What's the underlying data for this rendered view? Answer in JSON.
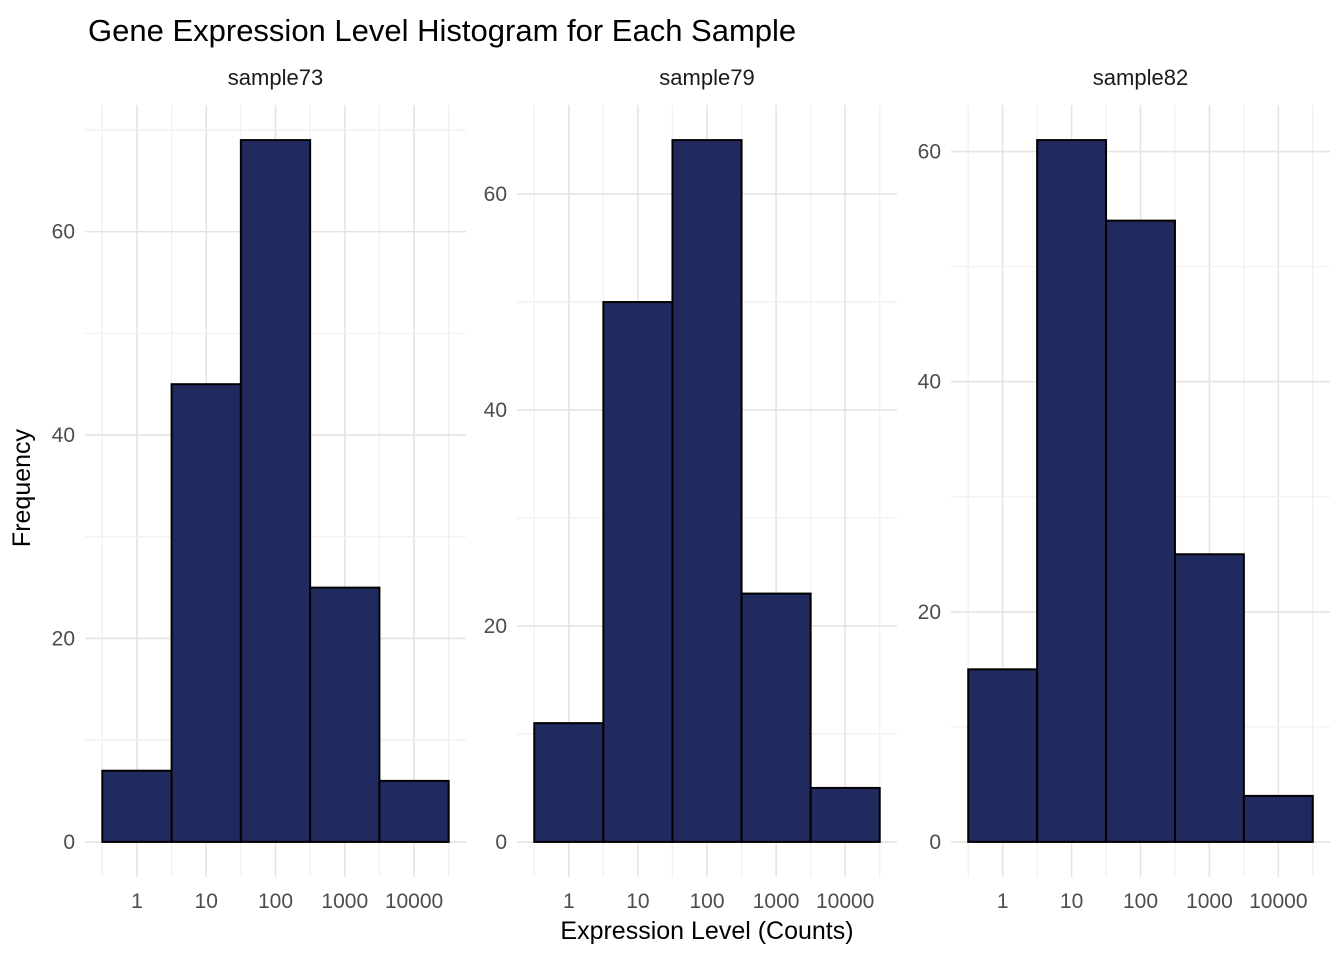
{
  "chart": {
    "title": "Gene Expression Level Histogram for Each Sample",
    "xlabel": "Expression Level (Counts)",
    "ylabel": "Frequency"
  },
  "chart_data": {
    "type": "bar",
    "subtype": "histogram_small_multiples",
    "title": "Gene Expression Level Histogram for Each Sample",
    "xlabel": "Expression Level (Counts)",
    "ylabel": "Frequency",
    "x_scale": "log10",
    "grid": "on",
    "legend": "none",
    "bin_centers": [
      1,
      10,
      100,
      1000,
      10000
    ],
    "x_tick_labels": [
      "1",
      "10",
      "100",
      "1000",
      "10000"
    ],
    "y_major_ticks": [
      0,
      20,
      40,
      60
    ],
    "y_minor_ticks": [
      10,
      30,
      50,
      70
    ],
    "y_expand_mult": 0.05,
    "panels": [
      {
        "title": "sample73",
        "values": [
          7,
          45,
          69,
          25,
          6
        ],
        "ylim": [
          0,
          72.45
        ]
      },
      {
        "title": "sample79",
        "values": [
          11,
          50,
          65,
          23,
          5
        ],
        "ylim": [
          0,
          68.25
        ]
      },
      {
        "title": "sample82",
        "values": [
          15,
          61,
          54,
          25,
          4
        ],
        "ylim": [
          0,
          64.05
        ]
      }
    ],
    "colors": {
      "bar_fill": "#212a5e",
      "bar_stroke": "#000000",
      "grid_major": "#e4e4e4",
      "grid_minor": "#f1f1f1",
      "tick_label": "#4d4d4d",
      "panel_title": "#1a1a1a",
      "title_text": "#000000",
      "background": "#ffffff"
    }
  }
}
